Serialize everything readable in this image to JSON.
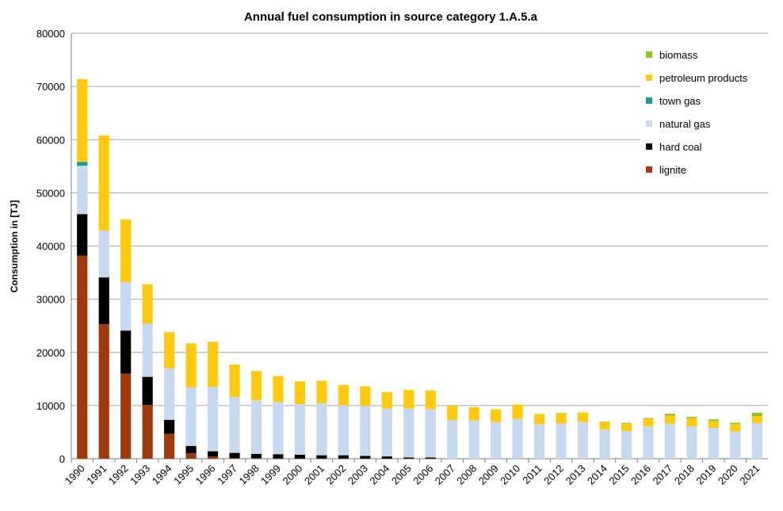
{
  "chart_data": {
    "type": "bar",
    "stacked": true,
    "title": "Annual fuel consumption in source category 1.A.5.a",
    "xlabel": "",
    "ylabel": "Consumption  in [TJ]",
    "ylim": [
      0,
      80000
    ],
    "yticks": [
      "0",
      "10000",
      "20000",
      "30000",
      "40000",
      "50000",
      "60000",
      "70000",
      "80000"
    ],
    "grid": true,
    "legend_position": "top-right",
    "categories": [
      "1990",
      "1991",
      "1992",
      "1993",
      "1994",
      "1995",
      "1996",
      "1997",
      "1998",
      "1999",
      "2000",
      "2001",
      "2002",
      "2003",
      "2004",
      "2005",
      "2006",
      "2007",
      "2008",
      "2009",
      "2010",
      "2011",
      "2012",
      "2013",
      "2014",
      "2015",
      "2016",
      "2017",
      "2018",
      "2019",
      "2020",
      "2021"
    ],
    "series": [
      {
        "name": "lignite",
        "color": "#a0390b",
        "values": [
          38200,
          25300,
          16000,
          10100,
          4700,
          1000,
          400,
          100,
          100,
          50,
          50,
          50,
          50,
          30,
          30,
          30,
          20,
          0,
          0,
          0,
          0,
          0,
          0,
          0,
          0,
          0,
          0,
          0,
          0,
          0,
          0,
          0
        ]
      },
      {
        "name": "hard coal",
        "color": "#000000",
        "values": [
          7800,
          8800,
          8100,
          5300,
          2600,
          1400,
          1000,
          1000,
          800,
          800,
          700,
          600,
          600,
          500,
          400,
          200,
          200,
          0,
          0,
          0,
          0,
          0,
          0,
          0,
          0,
          0,
          0,
          0,
          0,
          0,
          0,
          0
        ]
      },
      {
        "name": "natural gas",
        "color": "#c6d9f0",
        "values": [
          9100,
          8800,
          9100,
          10000,
          9700,
          11000,
          12100,
          10500,
          10100,
          9800,
          9500,
          9800,
          9400,
          9400,
          9000,
          9200,
          9100,
          7300,
          7200,
          6900,
          7500,
          6500,
          6600,
          6900,
          5500,
          5200,
          6100,
          6600,
          6100,
          5800,
          5100,
          6700
        ]
      },
      {
        "name": "town gas",
        "color": "#1b9a9a",
        "values": [
          700,
          0,
          0,
          0,
          0,
          0,
          0,
          0,
          0,
          0,
          0,
          0,
          0,
          0,
          0,
          0,
          0,
          0,
          0,
          0,
          0,
          0,
          0,
          0,
          0,
          0,
          0,
          0,
          0,
          0,
          0,
          0
        ]
      },
      {
        "name": "petroleum products",
        "color": "#ffc90e",
        "values": [
          15600,
          17900,
          11800,
          7400,
          6800,
          8300,
          8500,
          6100,
          5500,
          4900,
          4300,
          4200,
          3800,
          3700,
          3100,
          3500,
          3500,
          2700,
          2500,
          2400,
          2700,
          1900,
          2000,
          1800,
          1500,
          1400,
          1400,
          1500,
          1500,
          1300,
          1400,
          1300
        ]
      },
      {
        "name": "biomass",
        "color": "#8bc71a",
        "values": [
          0,
          0,
          0,
          0,
          0,
          0,
          0,
          0,
          0,
          0,
          0,
          0,
          0,
          0,
          0,
          0,
          0,
          0,
          0,
          0,
          0,
          0,
          0,
          0,
          0,
          150,
          150,
          350,
          250,
          300,
          250,
          650
        ]
      }
    ],
    "legend": [
      "biomass",
      "petroleum products",
      "town gas",
      "natural gas",
      "hard coal",
      "lignite"
    ]
  }
}
